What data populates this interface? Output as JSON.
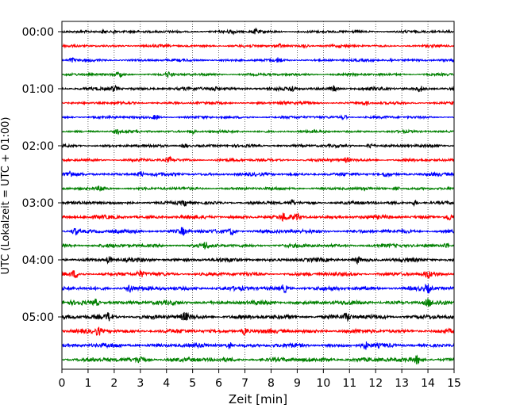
{
  "chart_data": {
    "type": "line",
    "title": "",
    "xlabel": "Zeit  [min]",
    "ylabel": "UTC (Lokalzeit = UTC + 01:00)",
    "xlim": [
      0,
      15
    ],
    "x_ticks": [
      "0",
      "1",
      "2",
      "3",
      "4",
      "5",
      "6",
      "7",
      "8",
      "9",
      "10",
      "11",
      "12",
      "13",
      "14",
      "15"
    ],
    "y_tick_labels": [
      "00:00",
      "01:00",
      "02:00",
      "03:00",
      "04:00",
      "05:00"
    ],
    "grid": "vertical-dotted",
    "colors": [
      "#000000",
      "#ff0000",
      "#0000ff",
      "#008000"
    ],
    "traces": [
      {
        "start": "00:00",
        "color": "#000000",
        "amplitude": 0.8,
        "bursts": [
          1.6,
          2.0,
          6.5,
          7.4
        ]
      },
      {
        "start": "00:15",
        "color": "#ff0000",
        "amplitude": 0.8,
        "bursts": [
          8.3,
          9.3
        ]
      },
      {
        "start": "00:30",
        "color": "#0000ff",
        "amplitude": 0.8,
        "bursts": [
          0.4,
          8.3,
          12.6
        ]
      },
      {
        "start": "00:45",
        "color": "#008000",
        "amplitude": 0.8,
        "bursts": [
          2.2,
          4.1
        ]
      },
      {
        "start": "01:00",
        "color": "#000000",
        "amplitude": 1.0,
        "bursts": [
          2.0,
          5.8,
          8.8,
          10.4,
          13.7
        ]
      },
      {
        "start": "01:15",
        "color": "#ff0000",
        "amplitude": 0.8,
        "bursts": [
          8.5,
          11.6,
          15.0
        ]
      },
      {
        "start": "01:30",
        "color": "#0000ff",
        "amplitude": 0.8,
        "bursts": [
          3.6,
          10.8
        ]
      },
      {
        "start": "01:45",
        "color": "#008000",
        "amplitude": 0.8,
        "bursts": [
          2.1,
          5.0
        ]
      },
      {
        "start": "02:00",
        "color": "#000000",
        "amplitude": 0.9,
        "bursts": [
          4.7,
          11.8
        ]
      },
      {
        "start": "02:15",
        "color": "#ff0000",
        "amplitude": 0.9,
        "bursts": [
          4.1,
          10.9
        ]
      },
      {
        "start": "02:30",
        "color": "#0000ff",
        "amplitude": 1.0,
        "bursts": [
          0.3,
          3.0,
          12.4
        ]
      },
      {
        "start": "02:45",
        "color": "#008000",
        "amplitude": 0.9,
        "bursts": [
          1.5,
          12.8
        ]
      },
      {
        "start": "03:00",
        "color": "#000000",
        "amplitude": 1.0,
        "bursts": [
          4.7,
          8.8,
          13.5
        ]
      },
      {
        "start": "03:15",
        "color": "#ff0000",
        "amplitude": 1.2,
        "bursts": [
          8.5,
          9.0,
          14.8
        ]
      },
      {
        "start": "03:30",
        "color": "#0000ff",
        "amplitude": 1.2,
        "bursts": [
          0.5,
          4.6,
          6.5
        ]
      },
      {
        "start": "03:45",
        "color": "#008000",
        "amplitude": 1.1,
        "bursts": [
          5.5,
          14.7
        ]
      },
      {
        "start": "04:00",
        "color": "#000000",
        "amplitude": 1.2,
        "bursts": [
          1.8,
          11.3
        ]
      },
      {
        "start": "04:15",
        "color": "#ff0000",
        "amplitude": 1.2,
        "bursts": [
          0.5,
          3.0,
          14.0
        ]
      },
      {
        "start": "04:30",
        "color": "#0000ff",
        "amplitude": 1.3,
        "bursts": [
          2.6,
          8.5,
          14.0
        ]
      },
      {
        "start": "04:45",
        "color": "#008000",
        "amplitude": 1.3,
        "bursts": [
          1.3,
          14.0
        ]
      },
      {
        "start": "05:00",
        "color": "#000000",
        "amplitude": 1.4,
        "bursts": [
          1.8,
          4.7,
          10.9
        ]
      },
      {
        "start": "05:15",
        "color": "#ff0000",
        "amplitude": 1.3,
        "bursts": [
          1.4,
          7.0
        ]
      },
      {
        "start": "05:30",
        "color": "#0000ff",
        "amplitude": 1.3,
        "bursts": [
          6.4,
          11.6
        ]
      },
      {
        "start": "05:45",
        "color": "#008000",
        "amplitude": 1.4,
        "bursts": [
          3.0,
          13.6
        ]
      }
    ]
  }
}
